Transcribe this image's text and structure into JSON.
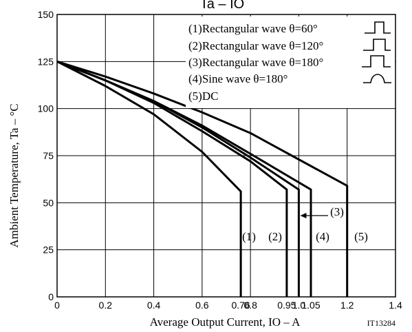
{
  "chart_data": {
    "type": "line",
    "title": "Ta – IO",
    "xlabel": "Average Output Current, IO – A",
    "ylabel": "Ambient Temperature, Ta – °C",
    "xlim": [
      0,
      1.4
    ],
    "ylim": [
      0,
      150
    ],
    "x_ticks": [
      {
        "value": 0,
        "label": "0"
      },
      {
        "value": 0.2,
        "label": "0.2"
      },
      {
        "value": 0.4,
        "label": "0.4"
      },
      {
        "value": 0.6,
        "label": "0.6"
      },
      {
        "value": 0.76,
        "label": "0.76"
      },
      {
        "value": 0.8,
        "label": "0.8"
      },
      {
        "value": 0.95,
        "label": "0.95"
      },
      {
        "value": 1.0,
        "label": "1.0"
      },
      {
        "value": 1.05,
        "label": "1.05"
      },
      {
        "value": 1.2,
        "label": "1.2"
      },
      {
        "value": 1.4,
        "label": "1.4"
      }
    ],
    "y_ticks": [
      {
        "value": 0,
        "label": "0"
      },
      {
        "value": 25,
        "label": "25"
      },
      {
        "value": 50,
        "label": "50"
      },
      {
        "value": 75,
        "label": "75"
      },
      {
        "value": 100,
        "label": "100"
      },
      {
        "value": 125,
        "label": "125"
      },
      {
        "value": 150,
        "label": "150"
      }
    ],
    "grid": true,
    "legend_position": "top-right",
    "series": [
      {
        "legend": "(1)Rectangular wave θ=60°",
        "label": "(1)",
        "wave_icon": "rect-pulse-narrow-icon",
        "points": [
          [
            0,
            125
          ],
          [
            0.2,
            112
          ],
          [
            0.4,
            97
          ],
          [
            0.6,
            77
          ],
          [
            0.76,
            56
          ],
          [
            0.76,
            0
          ]
        ]
      },
      {
        "legend": "(2)Rectangular wave θ=120°",
        "label": "(2)",
        "wave_icon": "rect-pulse-medium-icon",
        "points": [
          [
            0,
            125
          ],
          [
            0.2,
            115
          ],
          [
            0.4,
            103
          ],
          [
            0.6,
            88
          ],
          [
            0.8,
            72
          ],
          [
            0.95,
            57
          ],
          [
            0.95,
            0
          ]
        ]
      },
      {
        "legend": "(3)Rectangular wave θ=180°",
        "label": "(3)",
        "wave_icon": "rect-pulse-wide-icon",
        "points": [
          [
            0,
            125
          ],
          [
            0.2,
            115
          ],
          [
            0.4,
            104
          ],
          [
            0.6,
            91
          ],
          [
            0.8,
            76
          ],
          [
            1.05,
            57
          ],
          [
            1.05,
            0
          ]
        ]
      },
      {
        "legend": "(4)Sine wave θ=180°",
        "label": "(4)",
        "wave_icon": "sine-half-wave-icon",
        "points": [
          [
            0,
            125
          ],
          [
            0.2,
            115
          ],
          [
            0.4,
            104
          ],
          [
            0.6,
            90
          ],
          [
            0.8,
            74
          ],
          [
            1.0,
            57
          ],
          [
            1.0,
            0
          ]
        ]
      },
      {
        "legend": "(5)DC",
        "label": "(5)",
        "wave_icon": "",
        "points": [
          [
            0,
            125
          ],
          [
            0.2,
            117
          ],
          [
            0.4,
            108
          ],
          [
            0.6,
            98
          ],
          [
            0.8,
            87
          ],
          [
            1.0,
            73
          ],
          [
            1.2,
            59
          ],
          [
            1.2,
            0
          ]
        ]
      }
    ],
    "figure_code": "IT13284"
  }
}
